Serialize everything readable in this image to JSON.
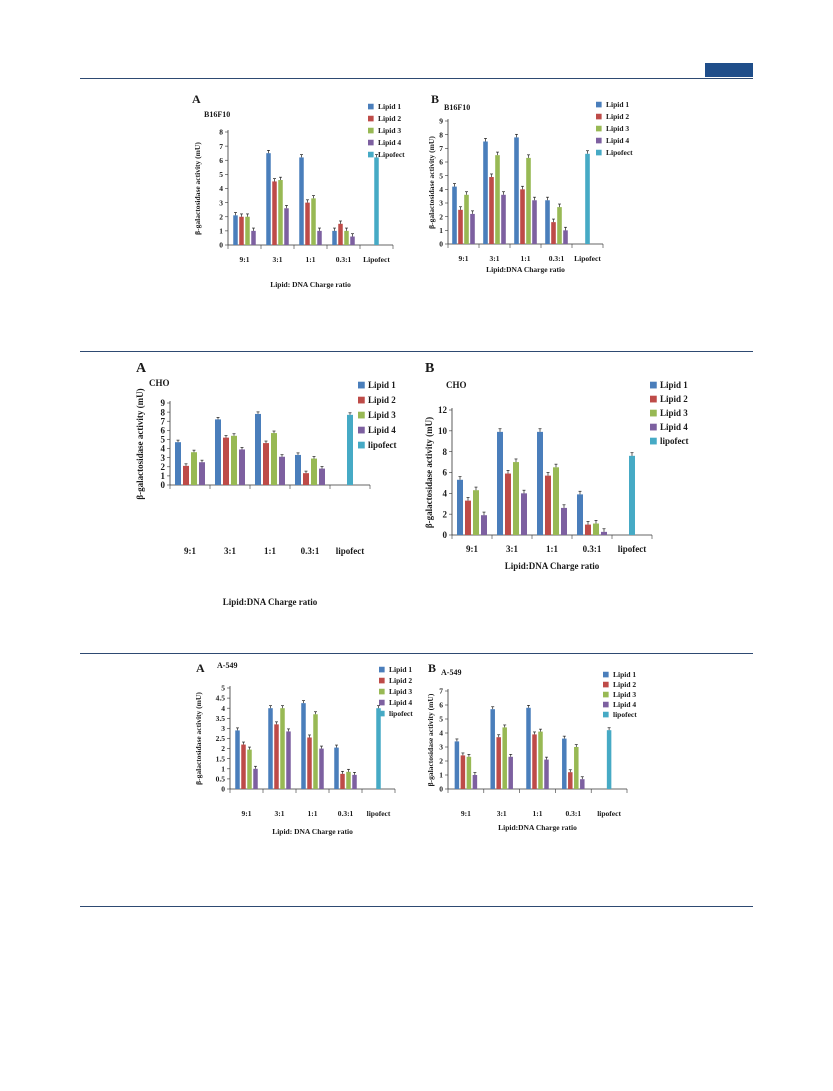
{
  "header": {
    "bar_color": "#1f4e8a",
    "rule_color": "#2e4a72"
  },
  "series_colors": [
    "#4a7ebb",
    "#be4b48",
    "#98b954",
    "#7d60a0",
    "#46aac5"
  ],
  "chart_data": [
    {
      "type": "bar",
      "panel": "A",
      "cell_line": "B16F10",
      "categories": [
        "9:1",
        "3:1",
        "1:1",
        "0.3:1",
        "Lipofect"
      ],
      "series": [
        {
          "name": "Lipid 1",
          "values": [
            2.1,
            6.5,
            6.2,
            1.0,
            null
          ]
        },
        {
          "name": "Lipid 2",
          "values": [
            2.0,
            4.5,
            3.0,
            1.5,
            null
          ]
        },
        {
          "name": "Lipid 3",
          "values": [
            2.0,
            4.6,
            3.3,
            1.0,
            null
          ]
        },
        {
          "name": "Lipid 4",
          "values": [
            1.0,
            2.6,
            1.0,
            0.6,
            null
          ]
        },
        {
          "name": "Lipofect",
          "values": [
            null,
            null,
            null,
            null,
            6.2
          ]
        }
      ],
      "ylabel": "β-galactosidase activity (mU)",
      "xlabel": "Lipid: DNA  Charge ratio",
      "ylim": [
        0,
        8
      ],
      "yticks": [
        "0",
        "1",
        "2",
        "3",
        "4",
        "5",
        "6",
        "7",
        "8"
      ],
      "legend": "right",
      "grid": false
    },
    {
      "type": "bar",
      "panel": "B",
      "cell_line": "B16F10",
      "categories": [
        "9:1",
        "3:1",
        "1:1",
        "0.3:1",
        "Lipofect"
      ],
      "series": [
        {
          "name": "Lipid 1",
          "values": [
            4.2,
            7.5,
            7.8,
            3.2,
            null
          ]
        },
        {
          "name": "Lipid 2",
          "values": [
            2.5,
            4.9,
            4.0,
            1.6,
            null
          ]
        },
        {
          "name": "Lipid 3",
          "values": [
            3.6,
            6.5,
            6.3,
            2.7,
            null
          ]
        },
        {
          "name": "Lipid 4",
          "values": [
            2.2,
            3.6,
            3.2,
            1.0,
            null
          ]
        },
        {
          "name": "Lipofect",
          "values": [
            null,
            null,
            null,
            null,
            6.6
          ]
        }
      ],
      "ylabel": "β-galactosidase activity (mU)",
      "xlabel": "Lipid:DNA  Charge ratio",
      "ylim": [
        0,
        9
      ],
      "yticks": [
        "0",
        "1",
        "2",
        "3",
        "4",
        "5",
        "6",
        "7",
        "8",
        "9"
      ],
      "legend": "right",
      "grid": false
    },
    {
      "type": "bar",
      "panel": "A",
      "cell_line": "CHO",
      "categories": [
        "9:1",
        "3:1",
        "1:1",
        "0.3:1",
        "lipofect"
      ],
      "series": [
        {
          "name": "Lipid 1",
          "values": [
            4.7,
            7.2,
            7.8,
            3.3,
            null
          ]
        },
        {
          "name": "Lipid 2",
          "values": [
            2.1,
            5.2,
            4.6,
            1.3,
            null
          ]
        },
        {
          "name": "Lipid 3",
          "values": [
            3.6,
            5.4,
            5.7,
            2.9,
            null
          ]
        },
        {
          "name": "Lipid 4",
          "values": [
            2.5,
            3.9,
            3.1,
            1.8,
            null
          ]
        },
        {
          "name": "lipofect",
          "values": [
            null,
            null,
            null,
            null,
            7.7
          ]
        }
      ],
      "ylabel": "β-galactosidase activity (mU)",
      "xlabel": "Lipid:DNA Charge ratio",
      "ylim": [
        0,
        9
      ],
      "yticks": [
        "0",
        "1",
        "2",
        "3",
        "4",
        "5",
        "6",
        "7",
        "8",
        "9"
      ],
      "legend": "right",
      "grid": false
    },
    {
      "type": "bar",
      "panel": "B",
      "cell_line": "CHO",
      "categories": [
        "9:1",
        "3:1",
        "1:1",
        "0.3:1",
        "lipofect"
      ],
      "series": [
        {
          "name": "Lipid 1",
          "values": [
            5.3,
            9.9,
            9.9,
            3.9,
            null
          ]
        },
        {
          "name": "Lipid 2",
          "values": [
            3.3,
            5.9,
            5.7,
            1.0,
            null
          ]
        },
        {
          "name": "Lipid 3",
          "values": [
            4.3,
            7.0,
            6.5,
            1.1,
            null
          ]
        },
        {
          "name": "Lipid 4",
          "values": [
            1.9,
            4.0,
            2.6,
            0.3,
            null
          ]
        },
        {
          "name": "lipofect",
          "values": [
            null,
            null,
            null,
            null,
            7.6
          ]
        }
      ],
      "ylabel": "β-galactosidase activity (mU)",
      "xlabel": "Lipid:DNA Charge ratio",
      "ylim": [
        0,
        12
      ],
      "yticks": [
        "0",
        "2",
        "4",
        "6",
        "8",
        "10",
        "12"
      ],
      "legend": "right",
      "grid": false
    },
    {
      "type": "bar",
      "panel": "A",
      "cell_line": "A-549",
      "categories": [
        "9:1",
        "3:1",
        "1:1",
        "0.3:1",
        "lipofect"
      ],
      "series": [
        {
          "name": "Lipid 1",
          "values": [
            2.9,
            4.0,
            4.25,
            2.05,
            null
          ]
        },
        {
          "name": "Lipid 2",
          "values": [
            2.2,
            3.2,
            2.55,
            0.75,
            null
          ]
        },
        {
          "name": "Lipid 3",
          "values": [
            1.95,
            4.0,
            3.7,
            0.85,
            null
          ]
        },
        {
          "name": "Lipid 4",
          "values": [
            1.0,
            2.85,
            2.0,
            0.7,
            null
          ]
        },
        {
          "name": "lipofect",
          "values": [
            null,
            null,
            null,
            null,
            4.0
          ]
        }
      ],
      "ylabel": "β-galactosidase activity (mU)",
      "xlabel": "Lipid: DNA Charge ratio",
      "ylim": [
        0,
        5
      ],
      "yticks": [
        "0",
        "0.5",
        "1",
        "1.5",
        "2",
        "2.5",
        "3",
        "3.5",
        "4",
        "4.5",
        "5"
      ],
      "legend": "right",
      "grid": false
    },
    {
      "type": "bar",
      "panel": "B",
      "cell_line": "A-549",
      "categories": [
        "9:1",
        "3:1",
        "1:1",
        "0.3:1",
        "lipofect"
      ],
      "series": [
        {
          "name": "Lipid 1",
          "values": [
            3.4,
            5.7,
            5.8,
            3.6,
            null
          ]
        },
        {
          "name": "Lipid 2",
          "values": [
            2.4,
            3.7,
            3.9,
            1.2,
            null
          ]
        },
        {
          "name": "Lipid 3",
          "values": [
            2.3,
            4.4,
            4.1,
            3.0,
            null
          ]
        },
        {
          "name": "Lipid 4",
          "values": [
            1.0,
            2.3,
            2.1,
            0.7,
            null
          ]
        },
        {
          "name": "lipofect",
          "values": [
            null,
            null,
            null,
            null,
            4.2
          ]
        }
      ],
      "ylabel": "β-galactosidase activity (mU)",
      "xlabel": "Lipid:DNA Charge ratio",
      "ylim": [
        0,
        7
      ],
      "yticks": [
        "0",
        "1",
        "2",
        "3",
        "4",
        "5",
        "6",
        "7"
      ],
      "legend": "right",
      "grid": false
    }
  ]
}
